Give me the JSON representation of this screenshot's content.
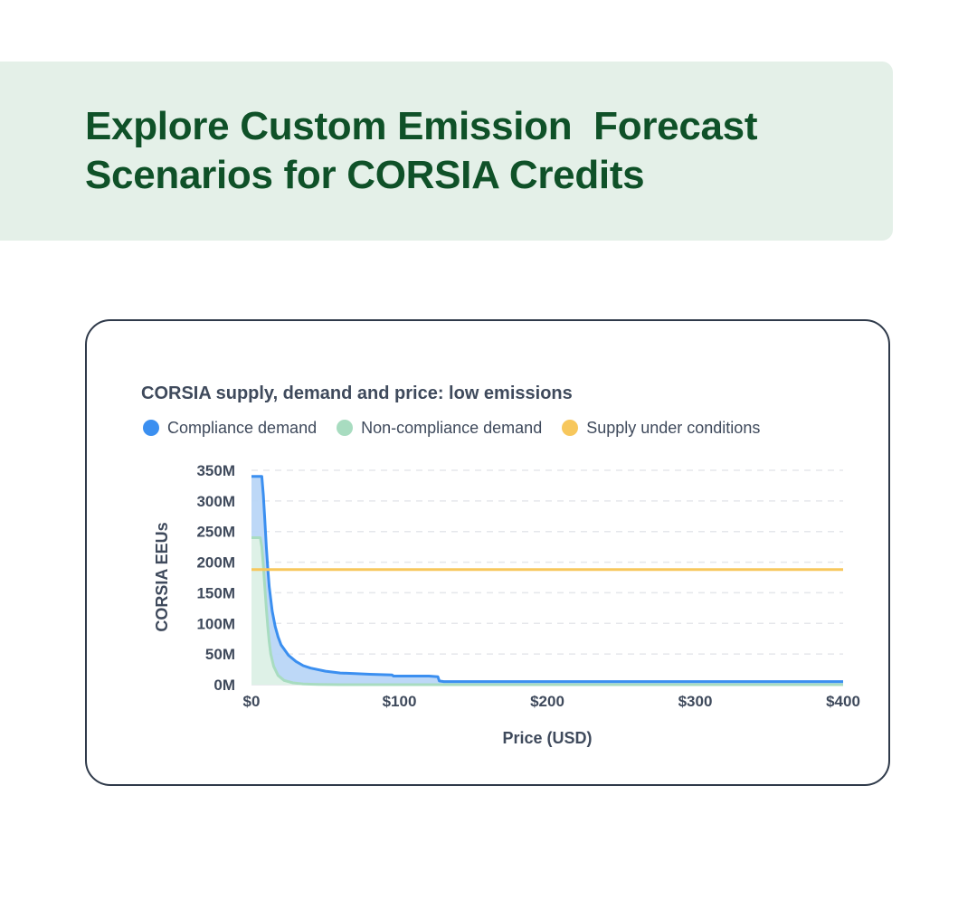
{
  "hero": {
    "title_line1": "Explore Custom Emission  Forecast",
    "title_line2": "Scenarios for CORSIA Credits"
  },
  "colors": {
    "hero_bg": "#e4f0e8",
    "hero_text": "#0f5128",
    "compliance": "#3b8ff0",
    "compliance_fill": "#b9d6f7",
    "non_compliance": "#a8dcc0",
    "non_compliance_fill": "#dff2e6",
    "supply": "#f7c75c"
  },
  "chart_data": {
    "type": "area",
    "title": "CORSIA supply, demand and price: low emissions",
    "xlabel": "Price (USD)",
    "ylabel": "CORSIA EEUs",
    "xlim": [
      0,
      400
    ],
    "ylim": [
      0,
      350
    ],
    "x_ticks": [
      "$0",
      "$100",
      "$200",
      "$300",
      "$400"
    ],
    "x_tick_values": [
      0,
      100,
      200,
      300,
      400
    ],
    "y_ticks": [
      "0M",
      "50M",
      "100M",
      "150M",
      "200M",
      "250M",
      "300M",
      "350M"
    ],
    "y_tick_values": [
      0,
      50,
      100,
      150,
      200,
      250,
      300,
      350
    ],
    "grid": true,
    "legend_position": "top-left",
    "series": [
      {
        "name": "Compliance demand",
        "x": [
          0,
          7,
          8,
          9,
          10,
          11,
          12,
          14,
          16,
          18,
          20,
          25,
          30,
          35,
          40,
          50,
          60,
          70,
          80,
          95,
          96,
          120,
          126,
          127,
          130,
          170,
          400
        ],
        "y": [
          340,
          340,
          310,
          270,
          225,
          190,
          160,
          120,
          95,
          78,
          65,
          48,
          38,
          31,
          27,
          22,
          19,
          18,
          17,
          16,
          14,
          14,
          13,
          6,
          5,
          5,
          5
        ]
      },
      {
        "name": "Non-compliance demand",
        "x": [
          0,
          6,
          7,
          8,
          9,
          10,
          11,
          12,
          13,
          15,
          18,
          22,
          28,
          35,
          45,
          60,
          400
        ],
        "y": [
          240,
          240,
          225,
          195,
          160,
          125,
          95,
          70,
          50,
          30,
          15,
          7,
          3,
          1,
          0.5,
          0,
          0
        ]
      },
      {
        "name": "Supply under conditions",
        "x": [
          0,
          400
        ],
        "y": [
          188,
          188
        ]
      }
    ]
  }
}
